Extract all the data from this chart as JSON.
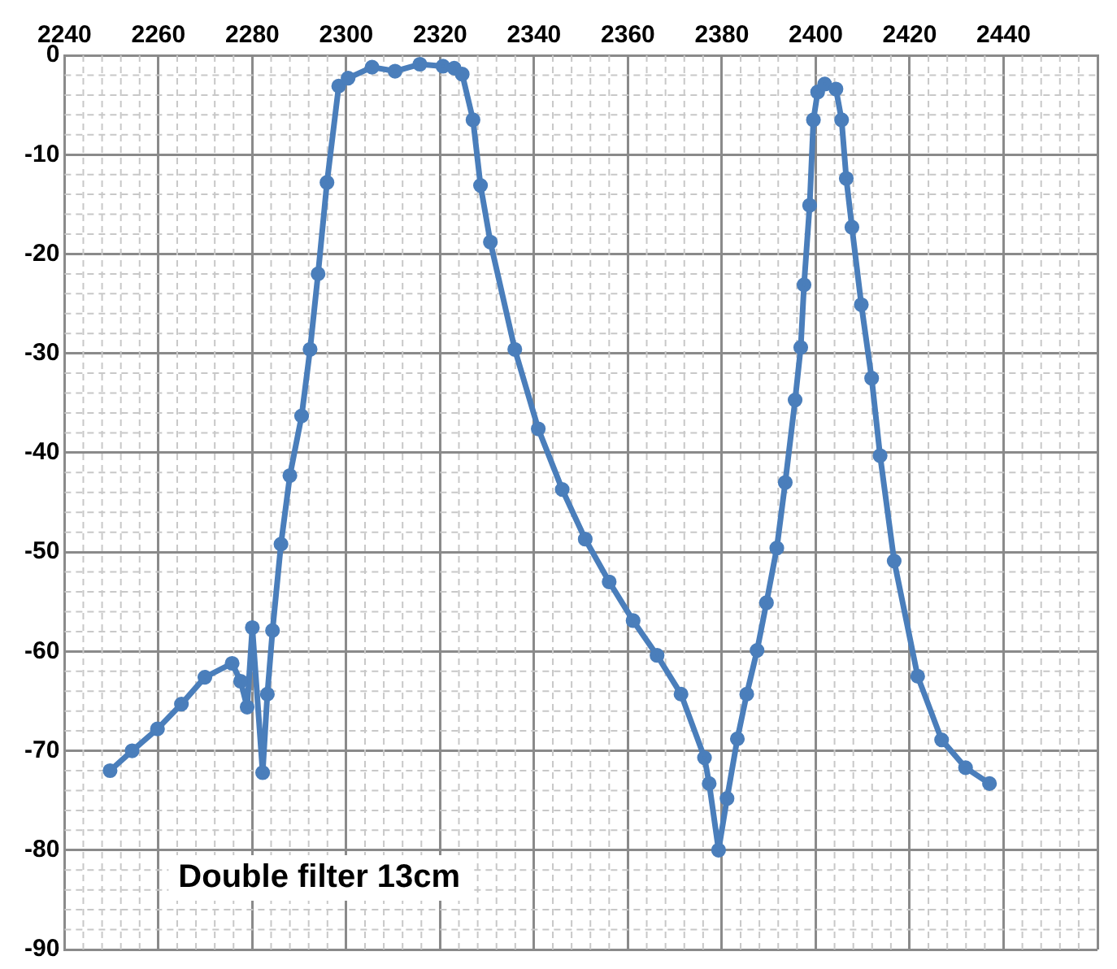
{
  "chart_data": {
    "type": "line",
    "annotations": [
      "Double filter 13cm"
    ],
    "x": [
      2249.7,
      2254.4,
      2259.8,
      2264.9,
      2269.9,
      2275.7,
      2277.5,
      2278.9,
      2280,
      2282.2,
      2283.2,
      2284.3,
      2286.1,
      2288,
      2290.5,
      2292.3,
      2294,
      2295.9,
      2298.4,
      2300.4,
      2305.5,
      2310.4,
      2315.7,
      2320.6,
      2323,
      2324.7,
      2327,
      2328.6,
      2330.7,
      2335.9,
      2340.9,
      2346,
      2350.9,
      2356,
      2361.1,
      2366.2,
      2371.3,
      2376.3,
      2377.3,
      2379.3,
      2381.1,
      2383.3,
      2385.3,
      2387.5,
      2389.5,
      2391.7,
      2393.5,
      2395.6,
      2396.8,
      2397.5,
      2398.7,
      2399.5,
      2400.4,
      2401.9,
      2404.3,
      2405.5,
      2406.5,
      2407.7,
      2409.7,
      2411.9,
      2413.7,
      2416.7,
      2421.7,
      2426.8,
      2431.9,
      2437
    ],
    "series": [
      {
        "color": "#4a7ebb",
        "values": [
          -72,
          -70,
          -67.8,
          -65.3,
          -62.6,
          -61.2,
          -63,
          -65.6,
          -57.6,
          -72.2,
          -64.3,
          -57.9,
          -49.2,
          -42.3,
          -36.3,
          -29.6,
          -22,
          -12.8,
          -3.1,
          -2.3,
          -1.2,
          -1.6,
          -0.9,
          -1.1,
          -1.3,
          -1.9,
          -6.5,
          -13.1,
          -18.8,
          -29.6,
          -37.6,
          -43.7,
          -48.7,
          -53,
          -56.9,
          -60.4,
          -64.3,
          -70.7,
          -73.3,
          -80,
          -74.8,
          -68.8,
          -64.3,
          -59.9,
          -55.1,
          -49.6,
          -43,
          -34.7,
          -29.4,
          -23.1,
          -15.1,
          -6.5,
          -3.7,
          -2.9,
          -3.4,
          -6.5,
          -12.4,
          -17.3,
          -25.1,
          -32.5,
          -40.3,
          -50.9,
          -62.5,
          -68.9,
          -71.7,
          -73.3
        ]
      }
    ],
    "xlim": [
      2240,
      2460
    ],
    "xticks": [
      2240,
      2260,
      2280,
      2300,
      2320,
      2340,
      2360,
      2380,
      2400,
      2420,
      2440,
      {
        "value": 2460,
        "label": null
      }
    ],
    "ylim": [
      -90,
      0
    ],
    "yticks": [
      0,
      -10,
      -20,
      -30,
      -40,
      -50,
      -60,
      -70,
      -80,
      -90
    ],
    "grid": true,
    "legend": false,
    "marker": "circle",
    "line_style": "solid"
  }
}
